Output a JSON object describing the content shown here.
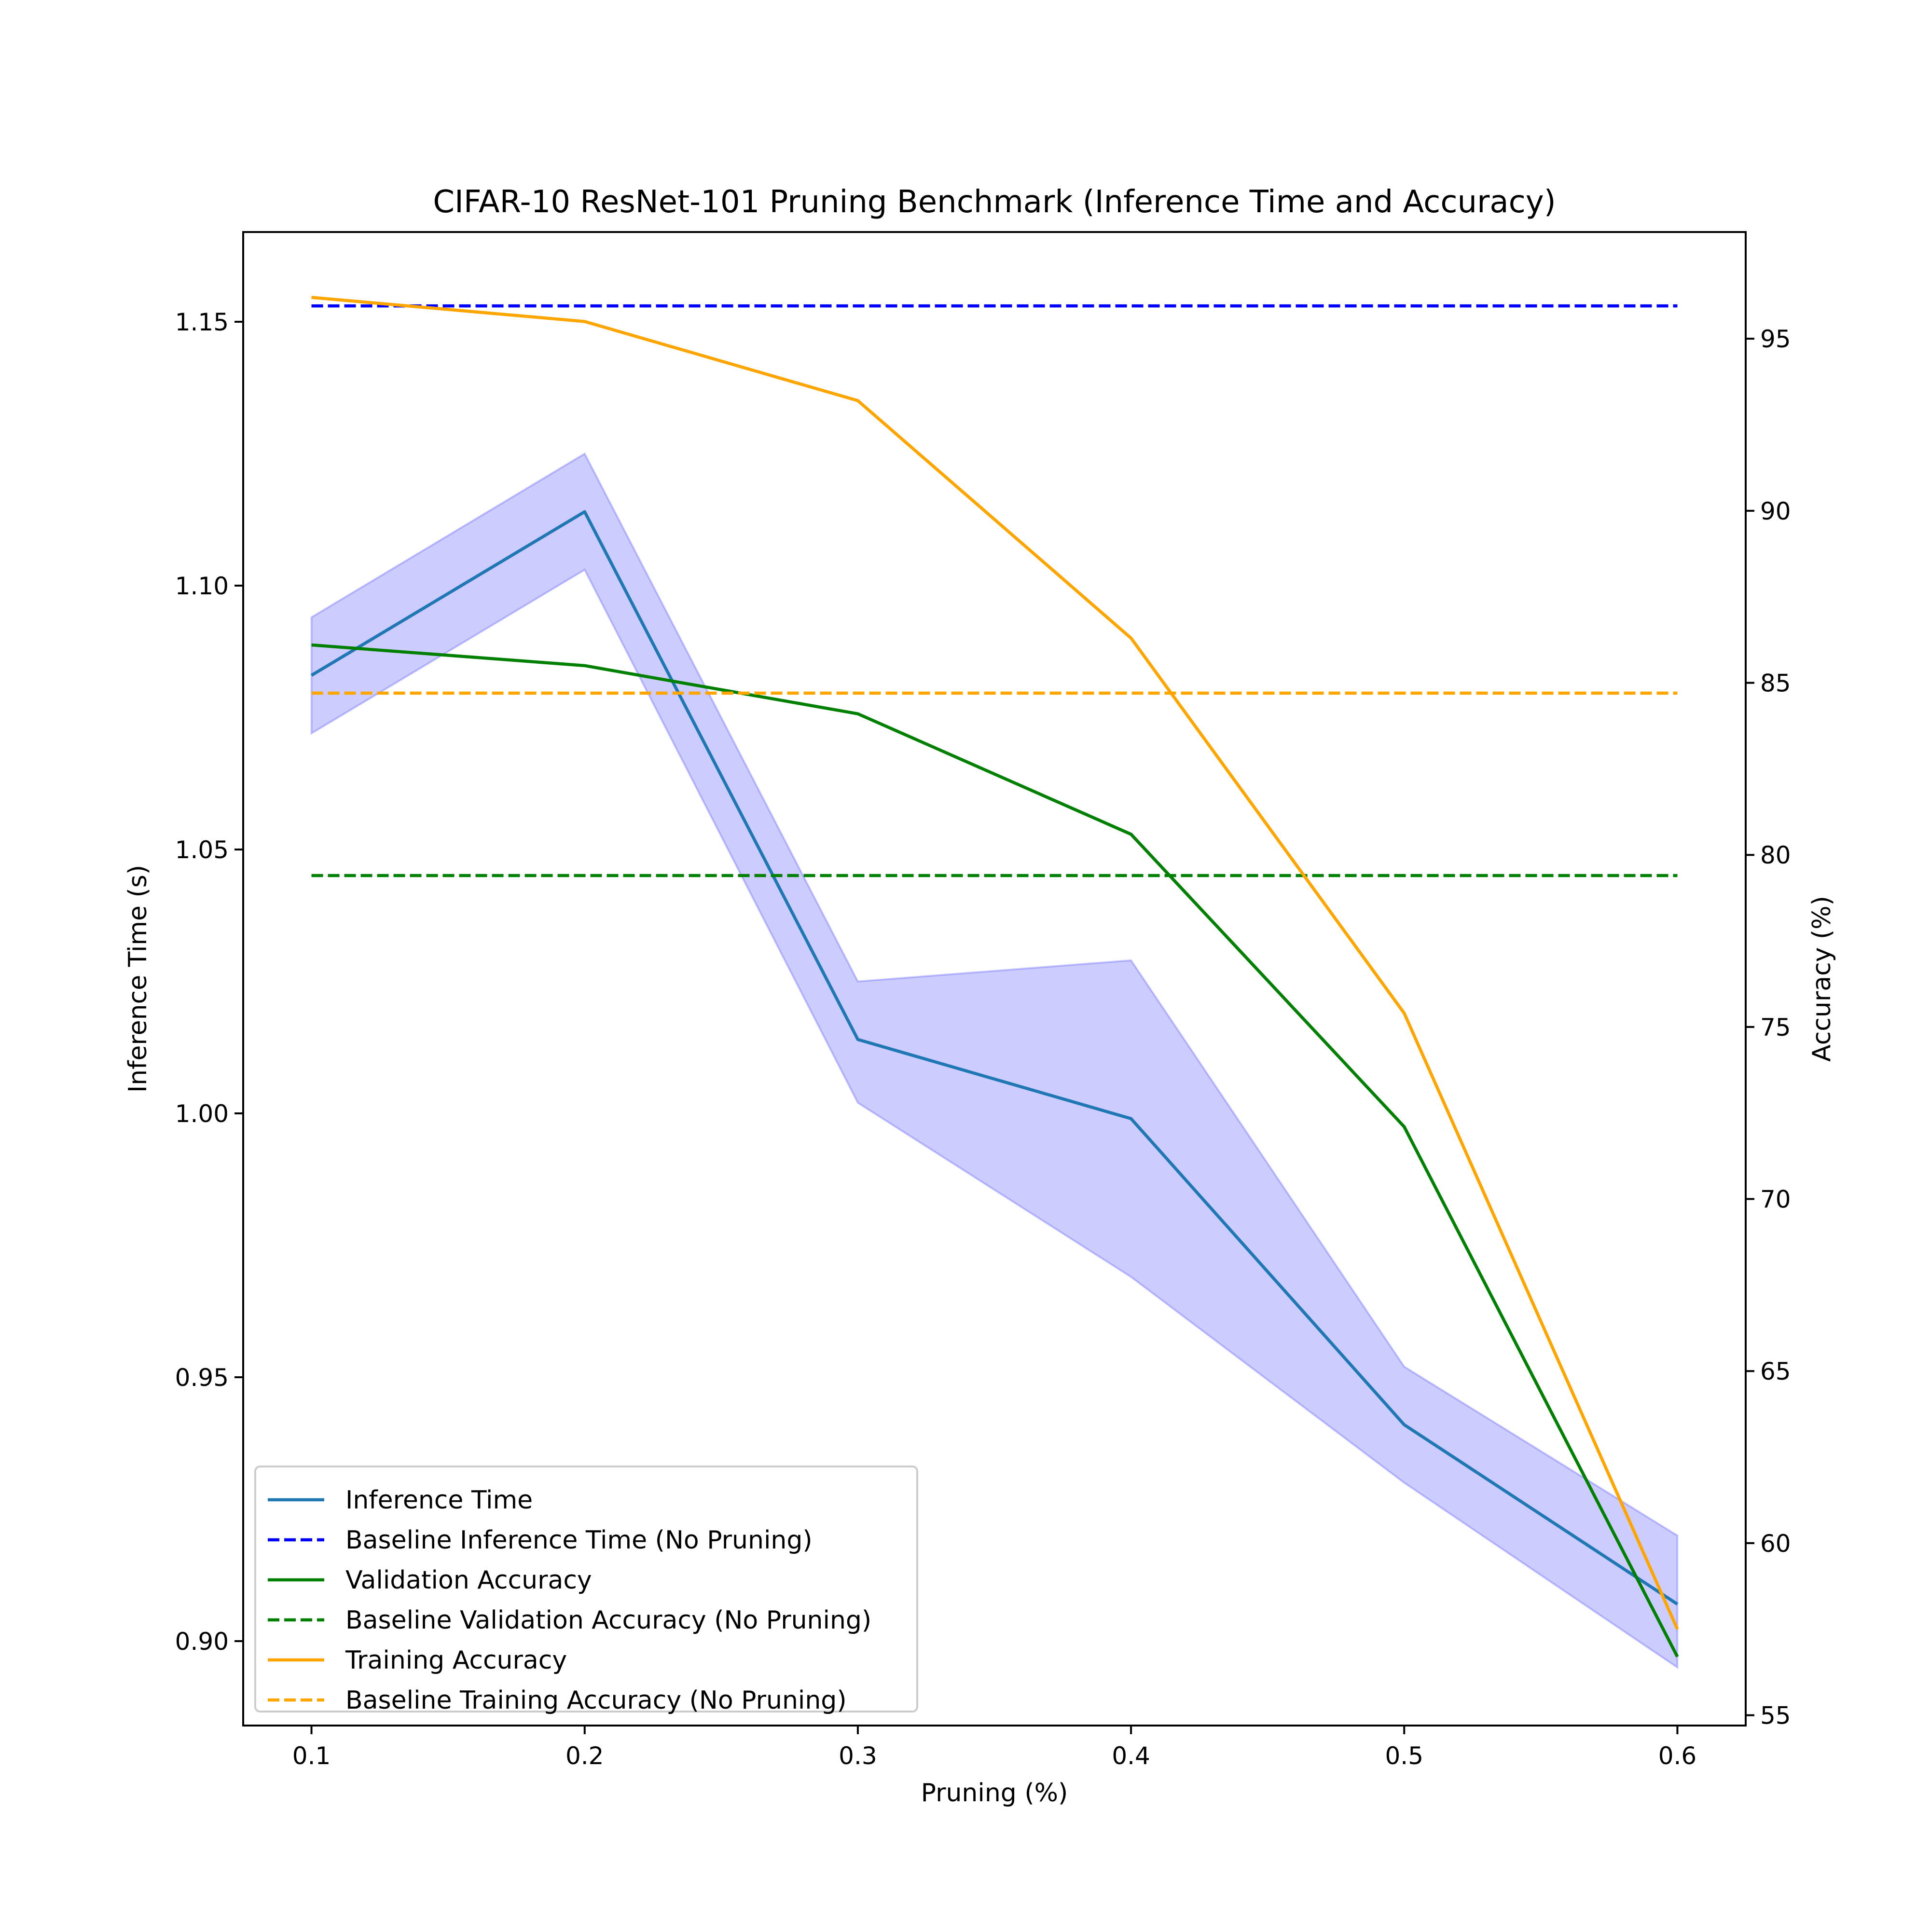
{
  "chart_data": {
    "type": "line",
    "title": "CIFAR-10 ResNet-101 Pruning Benchmark (Inference Time and Accuracy)",
    "xlabel": "Pruning (%)",
    "ylabel_left": "Inference Time (s)",
    "ylabel_right": "Accuracy (%)",
    "x": [
      0.1,
      0.2,
      0.3,
      0.4,
      0.5,
      0.6
    ],
    "x_ticks": [
      "0.1",
      "0.2",
      "0.3",
      "0.4",
      "0.5",
      "0.6"
    ],
    "xlim": [
      0.075,
      0.625
    ],
    "ylim_left": [
      0.884,
      1.167
    ],
    "y_ticks_left": [
      "0.90",
      "0.95",
      "1.00",
      "1.05",
      "1.10",
      "1.15"
    ],
    "ylim_right": [
      54.7,
      98.1
    ],
    "y_ticks_right": [
      "55",
      "60",
      "65",
      "70",
      "75",
      "80",
      "85",
      "90",
      "95"
    ],
    "grid": false,
    "legend_position": "lower-left",
    "series": [
      {
        "name": "Inference Time",
        "axis": "left",
        "style": "solid",
        "color": "#1f77b4",
        "values": [
          1.083,
          1.114,
          1.014,
          0.999,
          0.941,
          0.907
        ],
        "band_upper": [
          1.094,
          1.125,
          1.025,
          1.029,
          0.952,
          0.92
        ],
        "band_lower": [
          1.072,
          1.103,
          1.002,
          0.969,
          0.93,
          0.895
        ],
        "band_color": "#0000ff"
      },
      {
        "name": "Baseline Inference Time (No Pruning)",
        "axis": "left",
        "style": "dashed",
        "color": "#0000ff",
        "values": [
          1.153,
          1.153,
          1.153,
          1.153,
          1.153,
          1.153
        ]
      },
      {
        "name": "Validation Accuracy",
        "axis": "right",
        "style": "solid",
        "color": "#008000",
        "values": [
          86.1,
          85.5,
          84.1,
          80.6,
          72.1,
          56.7
        ]
      },
      {
        "name": "Baseline Validation Accuracy (No Pruning)",
        "axis": "right",
        "style": "dashed",
        "color": "#008000",
        "values": [
          79.4,
          79.4,
          79.4,
          79.4,
          79.4,
          79.4
        ]
      },
      {
        "name": "Training Accuracy",
        "axis": "right",
        "style": "solid",
        "color": "#ffa500",
        "values": [
          96.2,
          95.5,
          93.2,
          86.3,
          75.4,
          57.5
        ]
      },
      {
        "name": "Baseline Training Accuracy (No Pruning)",
        "axis": "right",
        "style": "dashed",
        "color": "#ffa500",
        "values": [
          84.7,
          84.7,
          84.7,
          84.7,
          84.7,
          84.7
        ]
      }
    ]
  }
}
